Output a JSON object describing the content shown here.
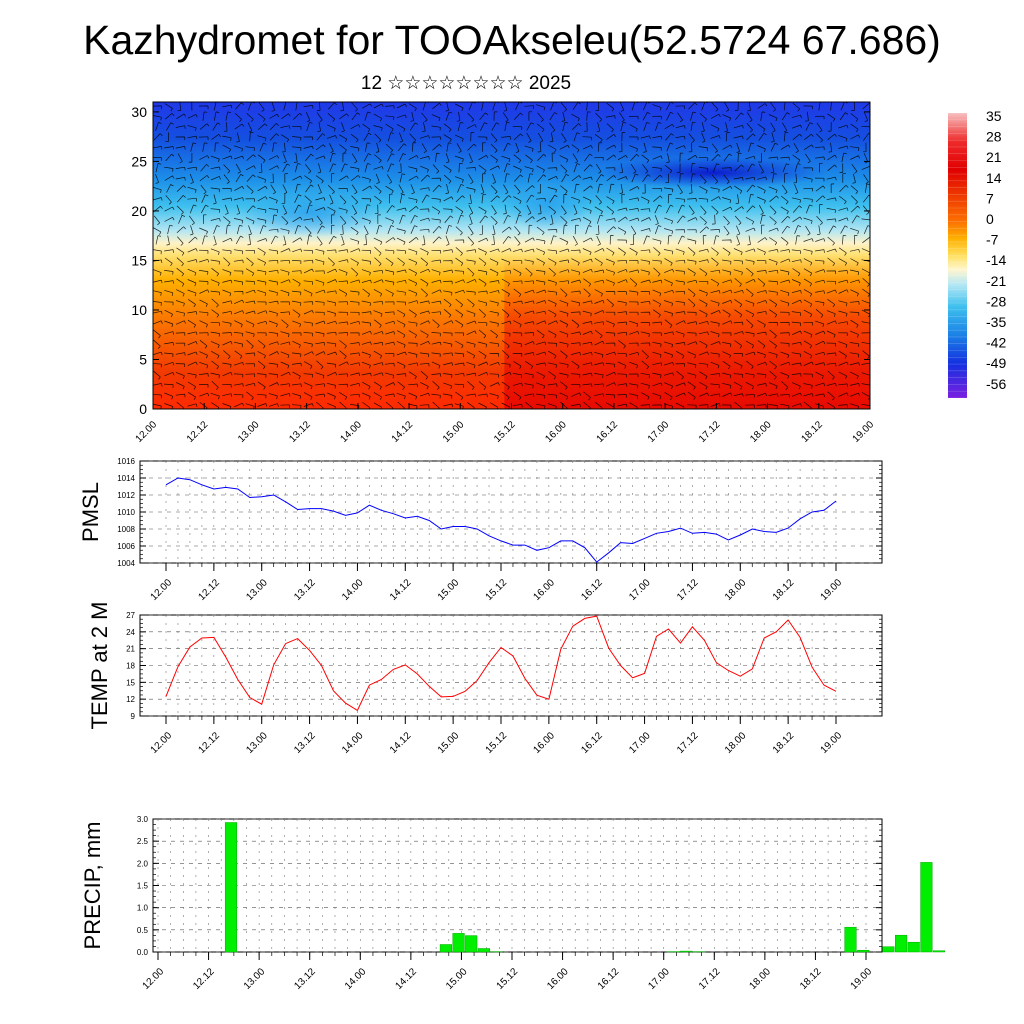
{
  "title": "Kazhydromet for TOOAkseleu(52.5724 67.686)",
  "subtitle": "12 ☆☆☆☆☆☆☆☆ 2025",
  "time_ticks": [
    "12.00",
    "12.12",
    "13.00",
    "13.12",
    "14.00",
    "14.12",
    "15.00",
    "15.12",
    "16.00",
    "16.12",
    "17.00",
    "17.12",
    "18.00",
    "18.12",
    "19.00"
  ],
  "chart_data": [
    {
      "type": "heatmap",
      "title": "",
      "xlabel": "",
      "ylabel": "",
      "y_ticks": [
        "0",
        "5",
        "10",
        "15",
        "20",
        "25",
        "30"
      ],
      "ylim": [
        0,
        31
      ],
      "colorbar": {
        "labels": [
          "35",
          "28",
          "21",
          "14",
          "7",
          "0",
          "-7",
          "-14",
          "-21",
          "-28",
          "-35",
          "-42",
          "-49",
          "-56"
        ],
        "colors": [
          "#f5b8b8",
          "#ee2222",
          "#dd0a0a",
          "#f03a00",
          "#fb6a00",
          "#ffa800",
          "#ffdd40",
          "#fff4c0",
          "#b5e6f2",
          "#3ec0ee",
          "#1c95e8",
          "#1466e0",
          "#1438e0",
          "#6620e0"
        ]
      },
      "summary": "temperature cross-section with wind barbs; warm (red) near surface, cold (blue) aloft, 0-contour near level 16-17"
    },
    {
      "type": "line",
      "ylabel": "PMSL",
      "ylim": [
        1004,
        1016
      ],
      "y_ticks": [
        "1004",
        "1006",
        "1008",
        "1010",
        "1012",
        "1014",
        "1016"
      ],
      "line_color": "#0000ff",
      "values": [
        1013.2,
        1014.0,
        1013.8,
        1013.2,
        1012.7,
        1012.9,
        1012.7,
        1011.7,
        1011.8,
        1012.0,
        1011.2,
        1010.3,
        1010.4,
        1010.4,
        1010.1,
        1009.6,
        1009.9,
        1010.8,
        1010.2,
        1009.8,
        1009.3,
        1009.5,
        1009.0,
        1008.0,
        1008.3,
        1008.3,
        1008.0,
        1007.2,
        1006.6,
        1006.1,
        1006.1,
        1005.5,
        1005.8,
        1006.6,
        1006.6,
        1005.8,
        1004.1,
        1005.2,
        1006.4,
        1006.3,
        1006.9,
        1007.5,
        1007.7,
        1008.1,
        1007.5,
        1007.6,
        1007.4,
        1006.7,
        1007.3,
        1008.0,
        1007.7,
        1007.6,
        1008.1,
        1009.2,
        1010.0,
        1010.2,
        1011.3
      ]
    },
    {
      "type": "line",
      "ylabel": "TEMP at 2 M",
      "ylim": [
        9,
        27
      ],
      "y_ticks": [
        "9",
        "12",
        "15",
        "18",
        "21",
        "24",
        "27"
      ],
      "line_color": "#ff0000",
      "values": [
        12.5,
        17.8,
        21.3,
        22.9,
        23.0,
        19.5,
        15.5,
        12.3,
        11.1,
        18.1,
        21.9,
        22.8,
        20.7,
        18.0,
        13.5,
        11.3,
        10.0,
        14.5,
        15.5,
        17.3,
        18.1,
        16.5,
        14.3,
        12.4,
        12.5,
        13.4,
        15.3,
        18.5,
        21.2,
        19.7,
        15.7,
        12.7,
        12.0,
        20.9,
        25.0,
        26.4,
        26.8,
        21.1,
        18.0,
        15.8,
        16.6,
        23.2,
        24.5,
        22.0,
        24.9,
        22.5,
        18.5,
        17.1,
        16.1,
        17.4,
        22.9,
        24.0,
        26.1,
        23.0,
        17.7,
        14.5,
        13.4
      ]
    },
    {
      "type": "bar",
      "ylabel": "PRECIP, mm",
      "ylim": [
        0,
        3
      ],
      "y_ticks": [
        "0.0",
        "0.5",
        "1.0",
        "1.5",
        "2.0",
        "2.5",
        "3.0"
      ],
      "bar_color": "#00ee00",
      "bar_hours": [
        15,
        66,
        69,
        72,
        75,
        78,
        120,
        123,
        126,
        162,
        165,
        171,
        174,
        177,
        180,
        183
      ],
      "bar_values": [
        2.92,
        0.17,
        0.42,
        0.37,
        0.08,
        0.01,
        0.01,
        0.02,
        0.01,
        0.56,
        0.04,
        0.12,
        0.38,
        0.22,
        2.02,
        0.03
      ]
    }
  ]
}
